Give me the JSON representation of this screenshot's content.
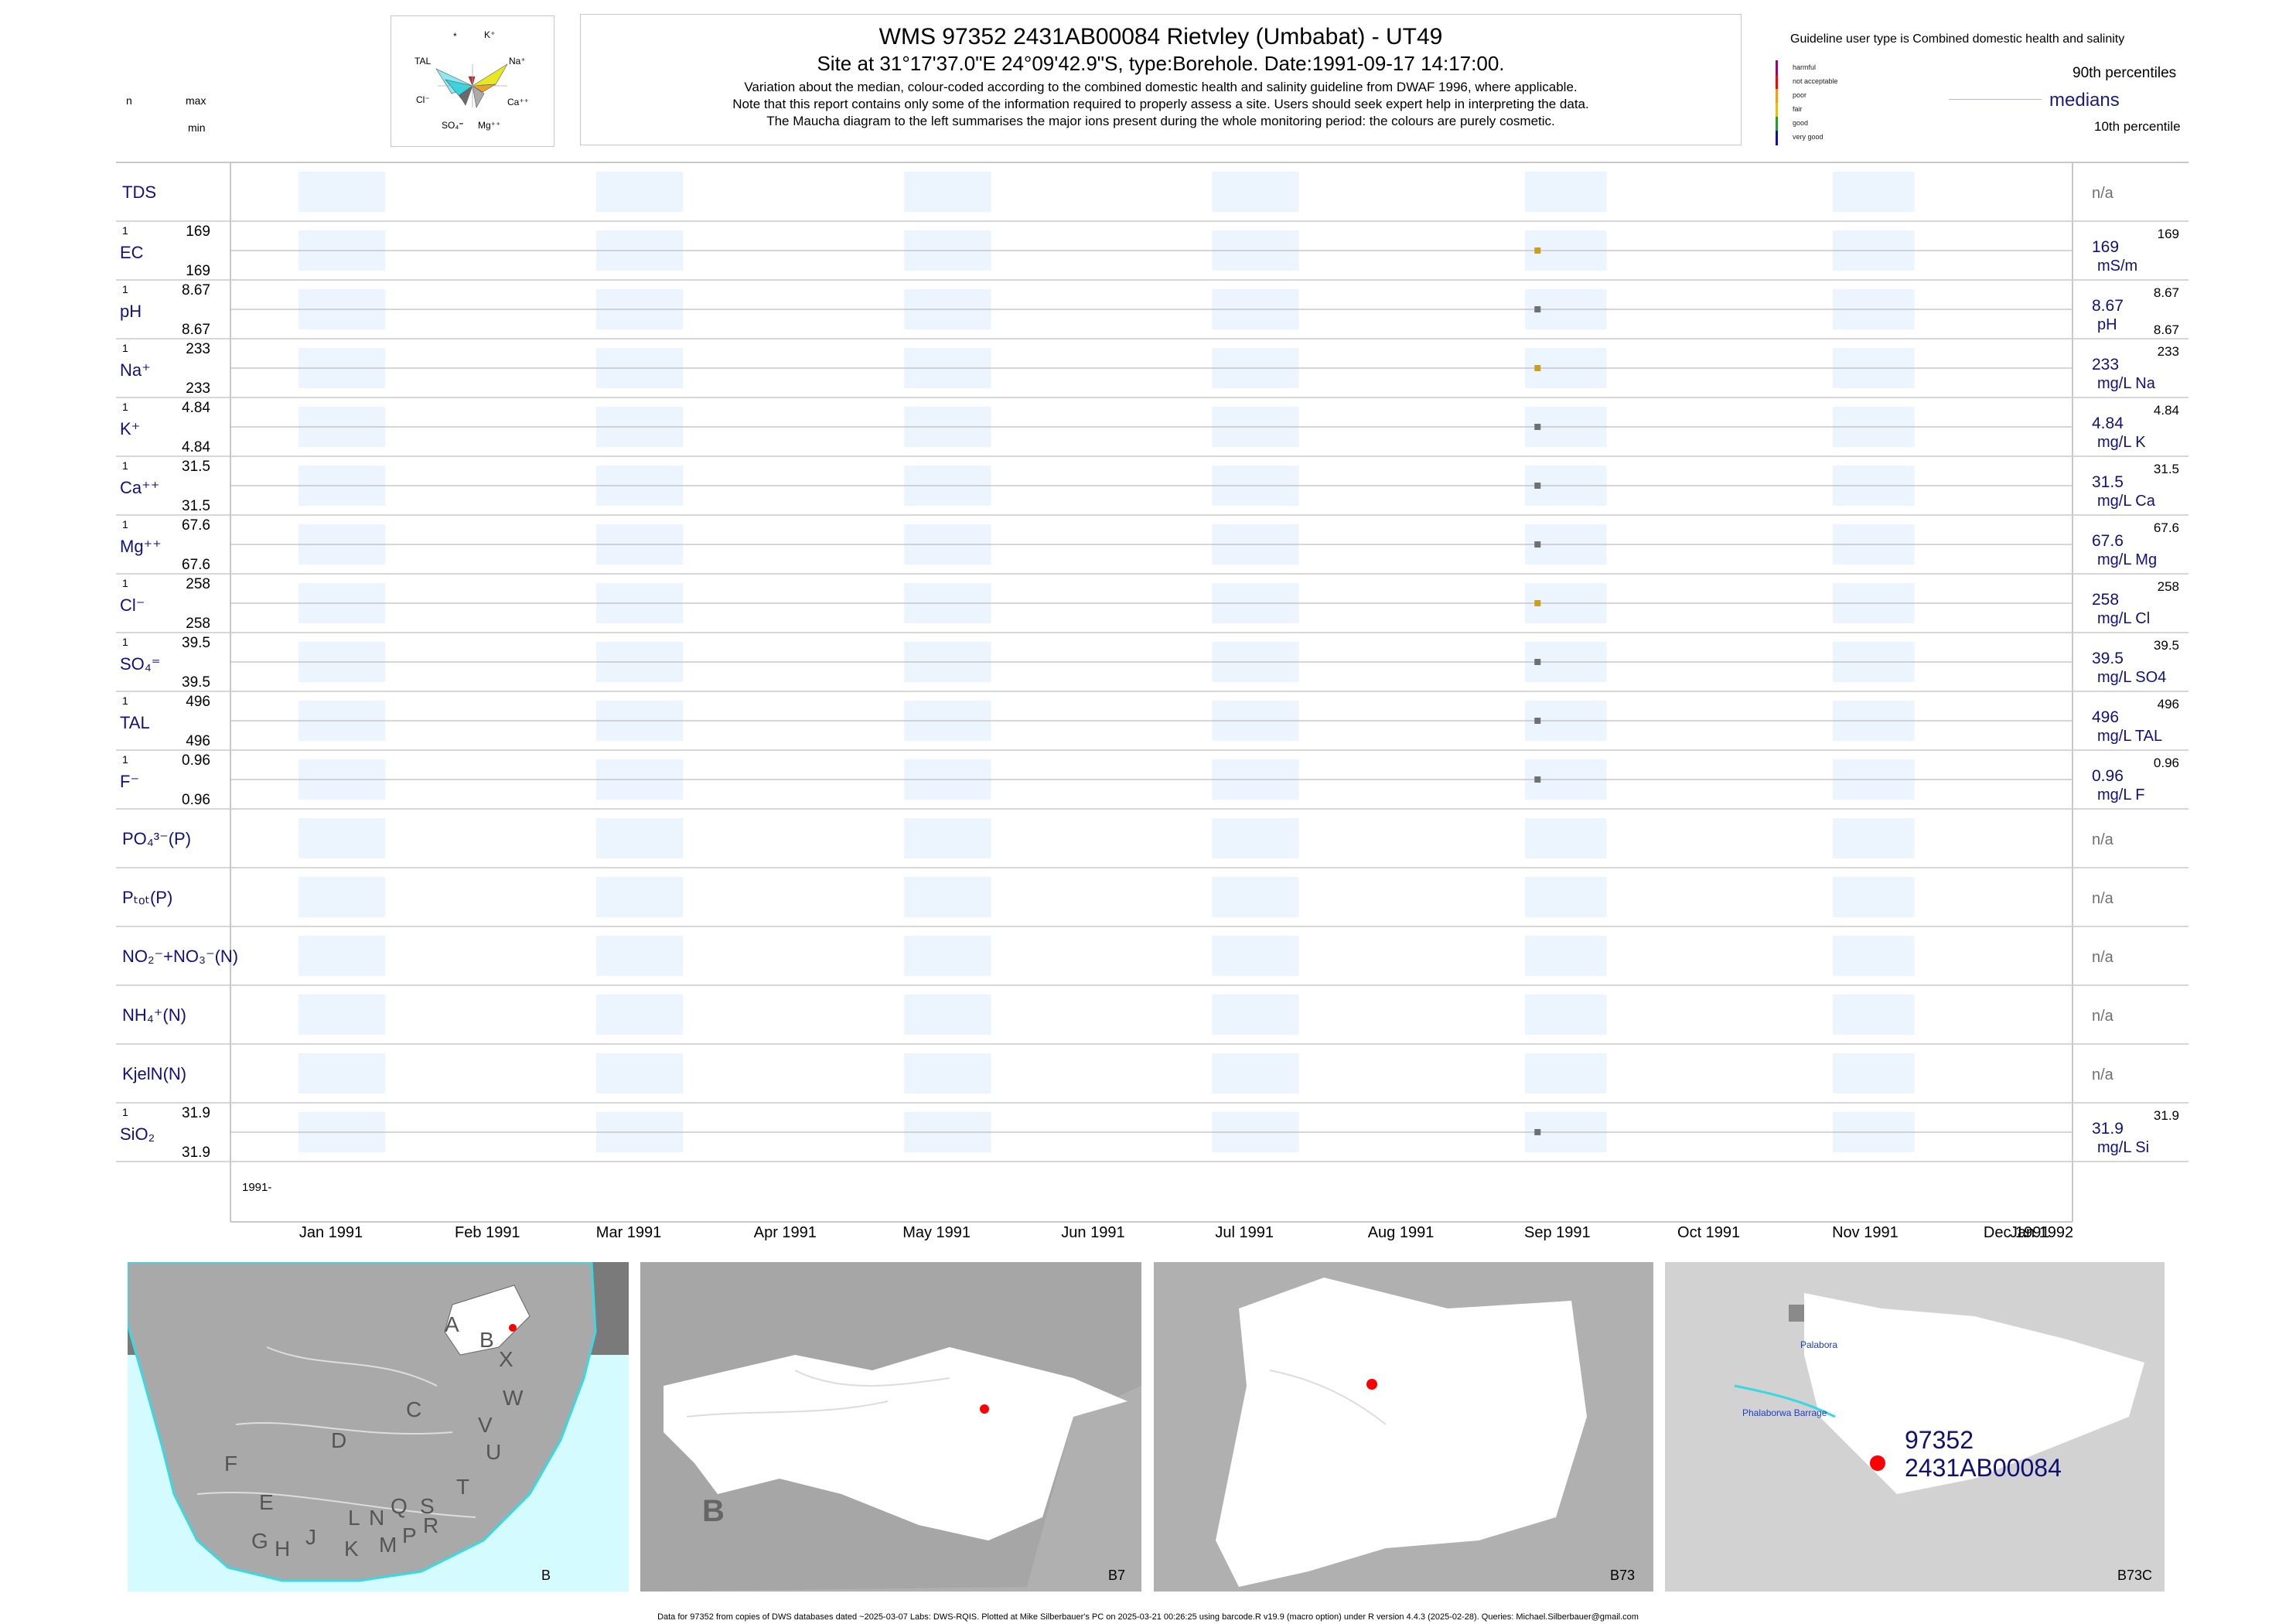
{
  "title": {
    "line1": "WMS 97352 2431AB00084 Rietvley (Umbabat) - UT49",
    "line2": "Site at 31°17'37.0\"E 24°09'42.9\"S, type:Borehole. Date:1991-09-17 14:17:00.",
    "line3": "Variation about the median,  colour-coded according to the combined domestic health and salinity guideline from DWAF 1996, where applicable.",
    "line4": "Note that this report contains only some of the information required to properly assess a site. Users should seek expert help in interpreting the data.",
    "line5": "The Maucha diagram to the left summarises the major ions present during the whole monitoring period: the colours are purely cosmetic."
  },
  "left_header": {
    "n": "n",
    "max": "max",
    "min": "min"
  },
  "maucha": {
    "labels": [
      "*",
      "K⁺",
      "Na⁺",
      "Ca⁺⁺",
      "Mg⁺⁺",
      "SO₄⁼",
      "Cl⁻",
      "TAL"
    ]
  },
  "guideline": {
    "title": "Guideline user type is Combined domestic health and salinity",
    "categories": [
      {
        "label": "harmful",
        "color": "#a0006a"
      },
      {
        "label": "not acceptable",
        "color": "#ff0000"
      },
      {
        "label": "poor",
        "color": "#ff9a00"
      },
      {
        "label": "fair",
        "color": "#e6c200"
      },
      {
        "label": "good",
        "color": "#22a022"
      },
      {
        "label": "very good",
        "color": "#1010a0"
      }
    ],
    "p90": "90th percentiles",
    "medians": "medians",
    "p10": "10th percentile"
  },
  "chart_data": {
    "type": "scatter",
    "x_range": [
      "1991-01-01",
      "1992-01-01"
    ],
    "x_ticks": [
      "Jan 1991",
      "Feb 1991",
      "Mar 1991",
      "Apr 1991",
      "May 1991",
      "Jun 1991",
      "Jul 1991",
      "Aug 1991",
      "Sep 1991",
      "Oct 1991",
      "Nov 1991",
      "Dec 1991",
      "Jan 1992"
    ],
    "year_label": "1991-",
    "sample_date": "1991-09-17",
    "parameters": [
      {
        "key": "TDS",
        "label": "TDS",
        "n": "",
        "max": "",
        "min": "",
        "median": "n/a",
        "unit": "",
        "p90": "",
        "p10": "",
        "color": ""
      },
      {
        "key": "EC",
        "label": "EC",
        "n": "1",
        "max": "169",
        "min": "169",
        "median": "169",
        "unit": "mS/m",
        "p90": "169",
        "p10": "",
        "color": "#c8a020"
      },
      {
        "key": "pH",
        "label": "pH",
        "n": "1",
        "max": "8.67",
        "min": "8.67",
        "median": "8.67",
        "unit": "pH",
        "p90": "8.67",
        "p10": "8.67",
        "color": "#707070"
      },
      {
        "key": "Na",
        "label": "Na⁺",
        "n": "1",
        "max": "233",
        "min": "233",
        "median": "233",
        "unit": "mg/L Na",
        "p90": "233",
        "p10": "",
        "color": "#c8a020"
      },
      {
        "key": "K",
        "label": "K⁺",
        "n": "1",
        "max": "4.84",
        "min": "4.84",
        "median": "4.84",
        "unit": "mg/L K",
        "p90": "4.84",
        "p10": "",
        "color": "#707070"
      },
      {
        "key": "Ca",
        "label": "Ca⁺⁺",
        "n": "1",
        "max": "31.5",
        "min": "31.5",
        "median": "31.5",
        "unit": "mg/L Ca",
        "p90": "31.5",
        "p10": "",
        "color": "#707070"
      },
      {
        "key": "Mg",
        "label": "Mg⁺⁺",
        "n": "1",
        "max": "67.6",
        "min": "67.6",
        "median": "67.6",
        "unit": "mg/L Mg",
        "p90": "67.6",
        "p10": "",
        "color": "#707070"
      },
      {
        "key": "Cl",
        "label": "Cl⁻",
        "n": "1",
        "max": "258",
        "min": "258",
        "median": "258",
        "unit": "mg/L Cl",
        "p90": "258",
        "p10": "",
        "color": "#c8a020"
      },
      {
        "key": "SO4",
        "label": "SO₄⁼",
        "n": "1",
        "max": "39.5",
        "min": "39.5",
        "median": "39.5",
        "unit": "mg/L SO4",
        "p90": "39.5",
        "p10": "",
        "color": "#707070"
      },
      {
        "key": "TAL",
        "label": "TAL",
        "n": "1",
        "max": "496",
        "min": "496",
        "median": "496",
        "unit": "mg/L TAL",
        "p90": "496",
        "p10": "",
        "color": "#707070"
      },
      {
        "key": "F",
        "label": "F⁻",
        "n": "1",
        "max": "0.96",
        "min": "0.96",
        "median": "0.96",
        "unit": "mg/L F",
        "p90": "0.96",
        "p10": "",
        "color": "#707070"
      },
      {
        "key": "PO4",
        "label": "PO₄³⁻(P)",
        "n": "",
        "max": "",
        "min": "",
        "median": "n/a",
        "unit": "",
        "p90": "",
        "p10": "",
        "color": ""
      },
      {
        "key": "Ptot",
        "label": "Pₜₒₜ(P)",
        "n": "",
        "max": "",
        "min": "",
        "median": "n/a",
        "unit": "",
        "p90": "",
        "p10": "",
        "color": ""
      },
      {
        "key": "NOx",
        "label": "NO₂⁻+NO₃⁻(N)",
        "n": "",
        "max": "",
        "min": "",
        "median": "n/a",
        "unit": "",
        "p90": "",
        "p10": "",
        "color": ""
      },
      {
        "key": "NH4",
        "label": "NH₄⁺(N)",
        "n": "",
        "max": "",
        "min": "",
        "median": "n/a",
        "unit": "",
        "p90": "",
        "p10": "",
        "color": ""
      },
      {
        "key": "KjelN",
        "label": "KjelN(N)",
        "n": "",
        "max": "",
        "min": "",
        "median": "n/a",
        "unit": "",
        "p90": "",
        "p10": "",
        "color": ""
      },
      {
        "key": "SiO2",
        "label": "SiO₂",
        "n": "1",
        "max": "31.9",
        "min": "31.9",
        "median": "31.9",
        "unit": "mg/L Si",
        "p90": "31.9",
        "p10": "",
        "color": "#707070"
      }
    ]
  },
  "maps": {
    "map1": {
      "corner": "B",
      "regions": [
        "A",
        "B",
        "X",
        "W",
        "C",
        "V",
        "U",
        "T",
        "D",
        "F",
        "E",
        "G",
        "H",
        "J",
        "K",
        "L",
        "M",
        "N",
        "P",
        "Q",
        "S",
        "R"
      ]
    },
    "map2": {
      "corner": "B7",
      "big_letter": "B"
    },
    "map3": {
      "corner": "B73"
    },
    "map4": {
      "corner": "B73C",
      "place1": "Palabora",
      "place2": "Phalaborwa Barrage",
      "site_id": "97352",
      "site_code": "2431AB00084"
    }
  },
  "footer": "Data for 97352 from copies of DWS databases dated ~2025-03-07 Labs: DWS-RQIS. Plotted at Mike Silberbauer's PC on 2025-03-21 00:26:25 using barcode.R v19.9 (macro option) under R version 4.4.3 (2025-02-28). Queries: Michael.Silberbauer@gmail.com"
}
